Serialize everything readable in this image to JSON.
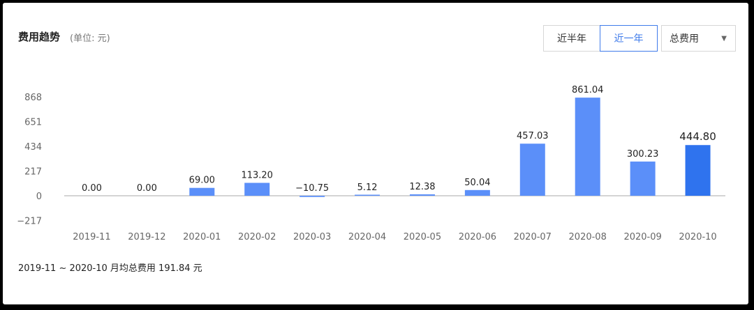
{
  "header": {
    "title": "费用趋势",
    "unit": "(单位: 元)"
  },
  "range_buttons": {
    "half_year": "近半年",
    "one_year": "近一年",
    "active": "one_year"
  },
  "metric_select": {
    "value": "总费用",
    "caret_icon": "chevron-down-icon"
  },
  "colors": {
    "bar": "#5b8ff9",
    "bar_highlight": "#2f73ee",
    "accent": "#3f7bea"
  },
  "chart_data": {
    "type": "bar",
    "categories": [
      "2019-11",
      "2019-12",
      "2020-01",
      "2020-02",
      "2020-03",
      "2020-04",
      "2020-05",
      "2020-06",
      "2020-07",
      "2020-08",
      "2020-09",
      "2020-10"
    ],
    "values": [
      0.0,
      0.0,
      69.0,
      113.2,
      -10.75,
      5.12,
      12.38,
      50.04,
      457.03,
      861.04,
      300.23,
      444.8
    ],
    "data_labels": [
      "0.00",
      "0.00",
      "69.00",
      "113.20",
      "−10.75",
      "5.12",
      "12.38",
      "50.04",
      "457.03",
      "861.04",
      "300.23",
      "444.80"
    ],
    "y_ticks": [
      "868",
      "651",
      "434",
      "217",
      "0",
      "−217"
    ],
    "y_tick_values": [
      868,
      651,
      434,
      217,
      0,
      -217
    ],
    "ylim": [
      -217,
      868
    ],
    "highlight_category": "2020-10",
    "grid": false
  },
  "footer": {
    "summary": "2019-11 ~ 2020-10 月均总费用 191.84 元"
  }
}
